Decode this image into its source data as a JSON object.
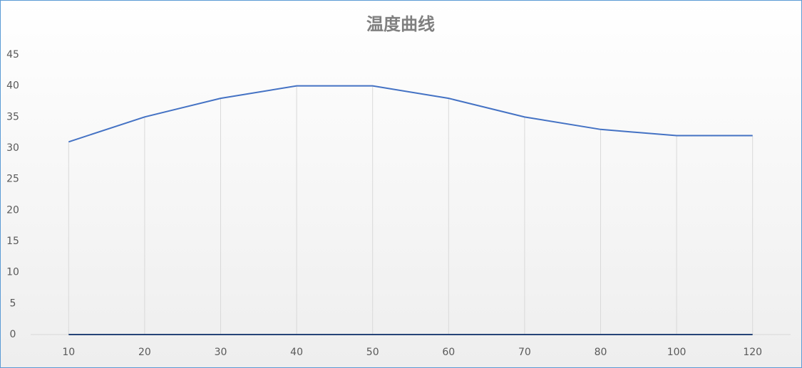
{
  "chart_data": {
    "type": "line",
    "title": "温度曲线",
    "categories": [
      "10",
      "20",
      "30",
      "40",
      "50",
      "60",
      "70",
      "80",
      "100",
      "120"
    ],
    "series": [
      {
        "color": "#4472c4",
        "values": [
          31,
          35,
          38,
          40,
          40,
          38,
          35,
          33,
          32,
          32
        ]
      },
      {
        "color": "#264478",
        "values": [
          0,
          0,
          0,
          0,
          0,
          0,
          0,
          0,
          0,
          0
        ]
      }
    ],
    "ylim": [
      0,
      45
    ],
    "yticks": [
      0,
      5,
      10,
      15,
      20,
      25,
      30,
      35,
      40,
      45
    ],
    "grid": false,
    "drop_lines": true
  }
}
